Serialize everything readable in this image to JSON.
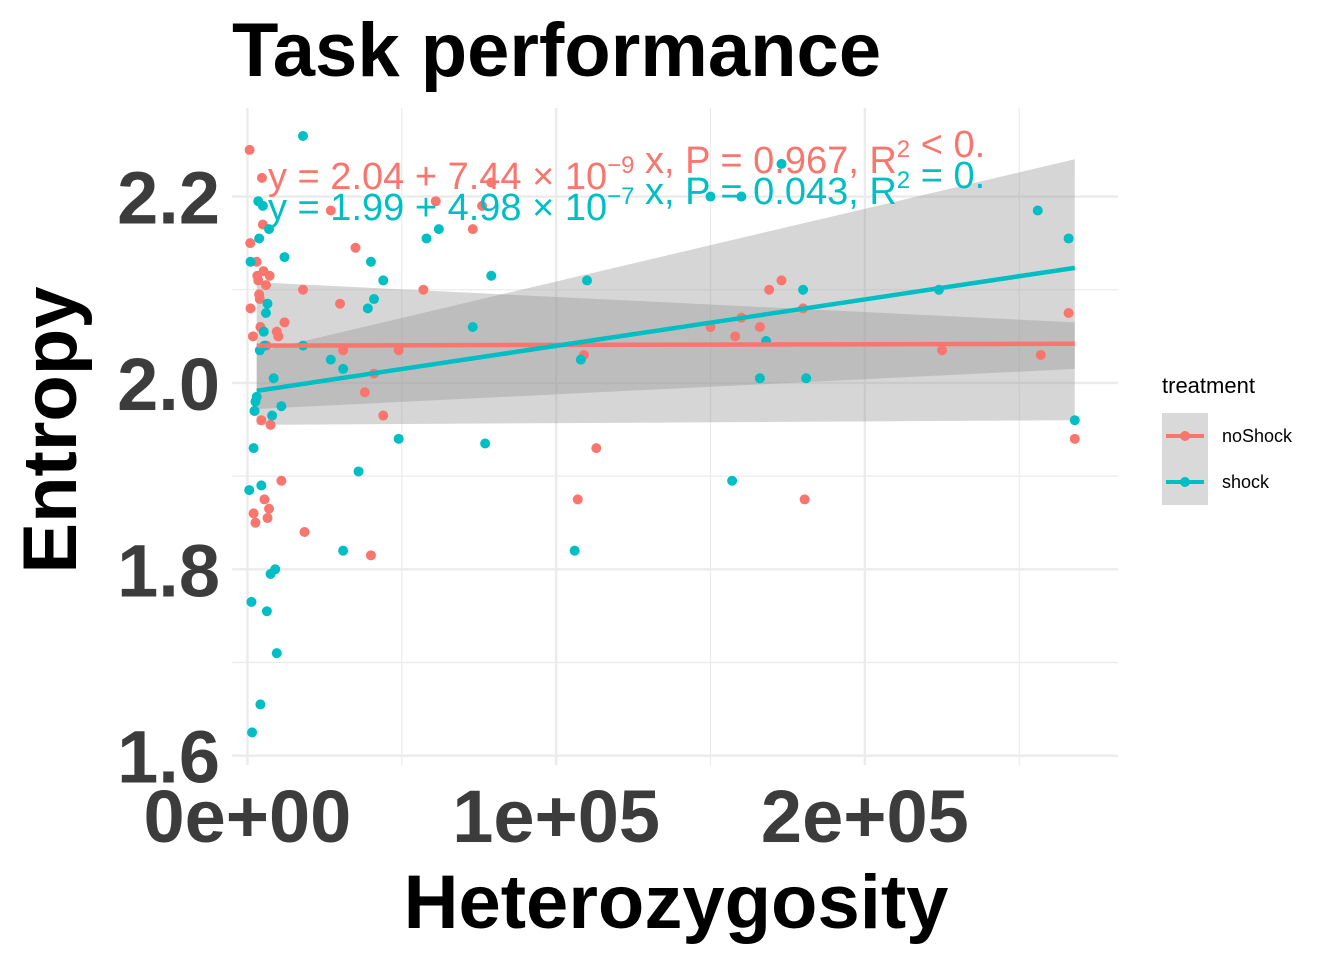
{
  "chart_data": {
    "type": "scatter",
    "title": "Task performance",
    "xlabel": "Heterozygosity",
    "ylabel": "Entropy",
    "xlim": [
      -5000,
      282000
    ],
    "ylim": [
      1.59,
      2.295
    ],
    "x_ticks": [
      0,
      100000,
      200000
    ],
    "x_tick_labels": [
      "0e+00",
      "1e+05",
      "2e+05"
    ],
    "x_minor_ticks": [
      50000,
      150000,
      250000
    ],
    "y_ticks": [
      1.6,
      1.8,
      2.0,
      2.2
    ],
    "y_tick_labels": [
      "1.6",
      "1.8",
      "2.0",
      "2.2"
    ],
    "y_minor_ticks": [
      1.7,
      1.9,
      2.1
    ],
    "grid": true,
    "legend": {
      "title": "treatment",
      "position": "right",
      "entries": [
        "noShock",
        "shock"
      ]
    },
    "colors": {
      "noShock": "#F8766D",
      "shock": "#00BFC4",
      "ribbon": "#999999",
      "grid": "#EBEBEB",
      "legend_key_bg": "#D9D9D9"
    },
    "series": [
      {
        "name": "noShock",
        "fit": {
          "intercept": 2.04,
          "slope": 7.44e-09
        },
        "ribbon": {
          "x": [
            3000,
            268000
          ],
          "lower_start": 1.972,
          "upper_start": 2.108,
          "lower_end": 2.015,
          "upper_end": 2.065
        },
        "equation": {
          "p1": "y = 2.04 + 7.44 × 10",
          "exp": "−9",
          "p2": " x, P = 0.967, R",
          "sq": "2",
          "p3": " < 0."
        },
        "points": [
          [
            700,
            2.25
          ],
          [
            900,
            2.15
          ],
          [
            1000,
            2.08
          ],
          [
            1800,
            2.05
          ],
          [
            2000,
            1.86
          ],
          [
            2300,
            1.97
          ],
          [
            2600,
            1.85
          ],
          [
            3000,
            2.13
          ],
          [
            3200,
            2.115
          ],
          [
            3500,
            2.11
          ],
          [
            3800,
            2.095
          ],
          [
            4000,
            2.09
          ],
          [
            4200,
            2.06
          ],
          [
            4500,
            1.96
          ],
          [
            4700,
            2.22
          ],
          [
            5000,
            2.17
          ],
          [
            5200,
            2.12
          ],
          [
            5500,
            1.875
          ],
          [
            6000,
            2.105
          ],
          [
            6200,
            2.04
          ],
          [
            6500,
            1.855
          ],
          [
            7000,
            1.865
          ],
          [
            7200,
            2.115
          ],
          [
            7500,
            1.955
          ],
          [
            9500,
            2.055
          ],
          [
            10000,
            2.05
          ],
          [
            11000,
            1.895
          ],
          [
            12000,
            2.065
          ],
          [
            18000,
            2.1
          ],
          [
            18500,
            1.84
          ],
          [
            27000,
            2.185
          ],
          [
            30000,
            2.085
          ],
          [
            31000,
            2.035
          ],
          [
            35000,
            2.145
          ],
          [
            38000,
            1.99
          ],
          [
            40000,
            1.815
          ],
          [
            41000,
            2.01
          ],
          [
            44000,
            1.965
          ],
          [
            49000,
            2.035
          ],
          [
            57000,
            2.1
          ],
          [
            61000,
            2.195
          ],
          [
            73000,
            2.165
          ],
          [
            76000,
            2.19
          ],
          [
            79000,
            2.215
          ],
          [
            109000,
            2.03
          ],
          [
            113000,
            1.93
          ],
          [
            107000,
            1.875
          ],
          [
            150000,
            2.06
          ],
          [
            158000,
            2.05
          ],
          [
            160000,
            2.07
          ],
          [
            166000,
            2.06
          ],
          [
            169000,
            2.1
          ],
          [
            173000,
            2.11
          ],
          [
            180000,
            2.08
          ],
          [
            180500,
            1.875
          ],
          [
            225000,
            2.035
          ],
          [
            257000,
            2.03
          ],
          [
            266000,
            2.075
          ],
          [
            268000,
            1.94
          ]
        ]
      },
      {
        "name": "shock",
        "fit": {
          "intercept": 1.99,
          "slope": 4.98e-07
        },
        "ribbon": {
          "x": [
            3000,
            268000
          ],
          "lower_start": 1.955,
          "upper_start": 2.033,
          "lower_end": 1.96,
          "upper_end": 2.24
        },
        "equation": {
          "p1": "y = 1.99 + 4.98 × 10",
          "exp": "−7",
          "p2": " x, P = 0.043, R",
          "sq": "2",
          "p3": " = 0."
        },
        "points": [
          [
            600,
            1.885
          ],
          [
            1000,
            2.13
          ],
          [
            1300,
            1.765
          ],
          [
            1500,
            1.625
          ],
          [
            2000,
            1.93
          ],
          [
            2300,
            1.97
          ],
          [
            2600,
            1.98
          ],
          [
            3000,
            1.985
          ],
          [
            3500,
            2.195
          ],
          [
            3800,
            2.155
          ],
          [
            4000,
            2.035
          ],
          [
            4200,
            1.655
          ],
          [
            4500,
            1.89
          ],
          [
            5000,
            2.19
          ],
          [
            5300,
            2.055
          ],
          [
            5500,
            2.04
          ],
          [
            6000,
            2.075
          ],
          [
            6300,
            1.755
          ],
          [
            6500,
            2.085
          ],
          [
            7000,
            2.165
          ],
          [
            7500,
            1.795
          ],
          [
            8000,
            1.965
          ],
          [
            8500,
            2.005
          ],
          [
            9000,
            1.8
          ],
          [
            9500,
            1.71
          ],
          [
            11000,
            1.975
          ],
          [
            12000,
            2.135
          ],
          [
            18000,
            2.04
          ],
          [
            18000,
            2.265
          ],
          [
            27000,
            2.025
          ],
          [
            31000,
            1.82
          ],
          [
            31000,
            2.015
          ],
          [
            36000,
            1.905
          ],
          [
            39000,
            2.08
          ],
          [
            40000,
            2.13
          ],
          [
            41000,
            2.09
          ],
          [
            44000,
            2.11
          ],
          [
            49000,
            1.94
          ],
          [
            58000,
            2.155
          ],
          [
            62000,
            2.165
          ],
          [
            73000,
            2.06
          ],
          [
            77000,
            1.935
          ],
          [
            79000,
            2.115
          ],
          [
            106000,
            1.82
          ],
          [
            108000,
            2.025
          ],
          [
            110000,
            2.11
          ],
          [
            150000,
            2.2
          ],
          [
            157000,
            1.895
          ],
          [
            160000,
            2.2
          ],
          [
            166000,
            2.005
          ],
          [
            168000,
            2.045
          ],
          [
            173000,
            2.235
          ],
          [
            180000,
            2.1
          ],
          [
            181000,
            2.005
          ],
          [
            224000,
            2.1
          ],
          [
            256000,
            2.185
          ],
          [
            266000,
            2.155
          ],
          [
            268000,
            1.96
          ]
        ]
      }
    ]
  }
}
